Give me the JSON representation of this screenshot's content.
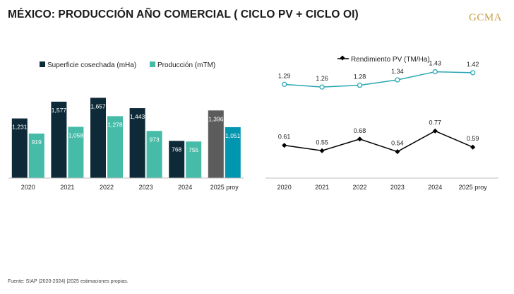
{
  "header": {
    "title": "MÉXICO: PRODUCCIÓN AÑO COMERCIAL ( CICLO PV + CICLO OI)",
    "logo_text": "GCMA"
  },
  "footer": {
    "source": "Fuente: SIAP (2020-2024) |2025 estimaciones propias."
  },
  "colors": {
    "superficie": "#0e2a38",
    "produccion": "#45bba8",
    "superficie_proy": "#5c5c5c",
    "produccion_proy": "#0096b0",
    "line_top": "#2aa6b3",
    "line_bottom": "#000000",
    "axis": "#bfbfbf"
  },
  "chart_data": [
    {
      "type": "bar",
      "title": "",
      "categories": [
        "2020",
        "2021",
        "2022",
        "2023",
        "2024",
        "2025 proy"
      ],
      "series": [
        {
          "name": "Superficie cosechada (mHa)",
          "values": [
            1231,
            1577,
            1657,
            1443,
            768,
            1396
          ],
          "labels": [
            "1,231",
            "1,577",
            "1,657",
            "1,443",
            "768",
            "1,396"
          ]
        },
        {
          "name": "Producción (mTM)",
          "values": [
            919,
            1058,
            1278,
            973,
            755,
            1051
          ],
          "labels": [
            "919",
            "1,058",
            "1,278",
            "973",
            "755",
            "1,051"
          ]
        }
      ],
      "ylim": [
        0,
        1750
      ],
      "legend": "top-left",
      "grid": false
    },
    {
      "type": "line",
      "title": "",
      "categories": [
        "2020",
        "2021",
        "2022",
        "2023",
        "2024",
        "2025 proy"
      ],
      "series": [
        {
          "name": "",
          "values": [
            1.29,
            1.26,
            1.28,
            1.34,
            1.43,
            1.42
          ],
          "labels": [
            "1.29",
            "1.26",
            "1.28",
            "1.34",
            "1.43",
            "1.42"
          ],
          "marker": "circle-open"
        },
        {
          "name": "Rendimiento PV (TM/Ha)",
          "values": [
            0.61,
            0.55,
            0.68,
            0.54,
            0.77,
            0.59
          ],
          "labels": [
            "0.61",
            "0.55",
            "0.68",
            "0.54",
            "0.77",
            "0.59"
          ],
          "marker": "diamond"
        }
      ],
      "ylim": [
        0.3,
        1.6
      ],
      "legend": "top-center",
      "grid": false
    }
  ]
}
